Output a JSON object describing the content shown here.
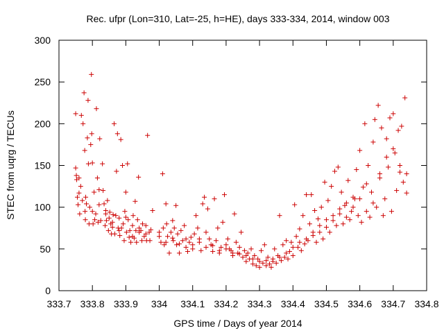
{
  "chart_data": {
    "type": "scatter",
    "title": "Rec. ufpr (Lon=310, Lat=-25, h=HE), days 333-334, 2014, window 003",
    "xlabel": "GPS time / Days of year 2014",
    "ylabel": "STEC from uqrg / TECUs",
    "xlim": [
      333.7,
      334.8
    ],
    "ylim": [
      0,
      300
    ],
    "x_ticks": [
      "333.7",
      "333.8",
      "333.9",
      "334",
      "334.1",
      "334.2",
      "334.3",
      "334.4",
      "334.5",
      "334.6",
      "334.7",
      "334.8"
    ],
    "y_ticks": [
      "0",
      "50",
      "100",
      "150",
      "200",
      "250",
      "300"
    ],
    "grid": false,
    "legend": "none",
    "marker": "+",
    "color": "#cc0000",
    "series": [
      {
        "points": [
          [
            333.75,
            147
          ],
          [
            333.752,
            138
          ],
          [
            333.753,
            133
          ],
          [
            333.755,
            112
          ],
          [
            333.757,
            103
          ],
          [
            333.75,
            212
          ],
          [
            333.76,
            117
          ],
          [
            333.762,
            92
          ],
          [
            333.765,
            125
          ],
          [
            333.767,
            210
          ],
          [
            333.77,
            108
          ],
          [
            333.772,
            200
          ],
          [
            333.775,
            237
          ],
          [
            333.777,
            168
          ],
          [
            333.778,
            95
          ],
          [
            333.779,
            85
          ],
          [
            333.782,
            104
          ],
          [
            333.785,
            183
          ],
          [
            333.787,
            228
          ],
          [
            333.788,
            152
          ],
          [
            333.79,
            80
          ],
          [
            333.792,
            100
          ],
          [
            333.795,
            175
          ],
          [
            333.797,
            259
          ],
          [
            333.798,
            188
          ],
          [
            333.8,
            153
          ],
          [
            333.802,
            80
          ],
          [
            333.805,
            118
          ],
          [
            333.807,
            85
          ],
          [
            333.81,
            92
          ],
          [
            333.812,
            218
          ],
          [
            333.815,
            135
          ],
          [
            333.817,
            82
          ],
          [
            333.82,
            121
          ],
          [
            333.822,
            182
          ],
          [
            333.825,
            84
          ],
          [
            333.83,
            152
          ],
          [
            333.832,
            120
          ],
          [
            333.835,
            104
          ],
          [
            333.838,
            78
          ],
          [
            333.84,
            96
          ],
          [
            333.842,
            84
          ],
          [
            333.845,
            108
          ],
          [
            333.848,
            72
          ],
          [
            333.85,
            87
          ],
          [
            333.852,
            94
          ],
          [
            333.855,
            80
          ],
          [
            333.857,
            68
          ],
          [
            333.86,
            76
          ],
          [
            333.862,
            91
          ],
          [
            333.865,
            200
          ],
          [
            333.867,
            68
          ],
          [
            333.87,
            90
          ],
          [
            333.872,
            143
          ],
          [
            333.875,
            188
          ],
          [
            333.877,
            75
          ],
          [
            333.88,
            87
          ],
          [
            333.882,
            66
          ],
          [
            333.885,
            181
          ],
          [
            333.887,
            75
          ],
          [
            333.89,
            150
          ],
          [
            333.892,
            80
          ],
          [
            333.895,
            60
          ],
          [
            333.897,
            95
          ],
          [
            333.9,
            118
          ],
          [
            333.902,
            70
          ],
          [
            333.905,
            152
          ],
          [
            333.907,
            85
          ],
          [
            333.91,
            64
          ],
          [
            333.912,
            72
          ],
          [
            333.915,
            58
          ],
          [
            333.92,
            78
          ],
          [
            333.922,
            90
          ],
          [
            333.925,
            63
          ],
          [
            333.928,
            107
          ],
          [
            333.93,
            72
          ],
          [
            333.932,
            58
          ],
          [
            333.935,
            85
          ],
          [
            333.938,
            136
          ],
          [
            333.94,
            70
          ],
          [
            333.945,
            72
          ],
          [
            333.948,
            60
          ],
          [
            333.95,
            80
          ],
          [
            333.955,
            65
          ],
          [
            333.96,
            78
          ],
          [
            333.962,
            60
          ],
          [
            333.965,
            186
          ],
          [
            333.97,
            70
          ],
          [
            333.972,
            60
          ],
          [
            333.975,
            73
          ],
          [
            333.98,
            96
          ],
          [
            334.0,
            65
          ],
          [
            334.005,
            58
          ],
          [
            334.01,
            140
          ],
          [
            334.012,
            75
          ],
          [
            334.015,
            55
          ],
          [
            334.02,
            104
          ],
          [
            334.022,
            80
          ],
          [
            334.025,
            65
          ],
          [
            334.03,
            45
          ],
          [
            334.035,
            70
          ],
          [
            334.04,
            84
          ],
          [
            334.042,
            60
          ],
          [
            334.045,
            75
          ],
          [
            334.05,
            102
          ],
          [
            334.052,
            55
          ],
          [
            334.055,
            68
          ],
          [
            334.06,
            45
          ],
          [
            334.065,
            72
          ],
          [
            334.07,
            60
          ],
          [
            334.075,
            78
          ],
          [
            334.08,
            52
          ],
          [
            334.085,
            47
          ],
          [
            334.09,
            58
          ],
          [
            334.095,
            64
          ],
          [
            334.1,
            50
          ],
          [
            334.105,
            68
          ],
          [
            334.11,
            90
          ],
          [
            334.115,
            75
          ],
          [
            334.12,
            62
          ],
          [
            334.125,
            48
          ],
          [
            334.13,
            104
          ],
          [
            334.135,
            112
          ],
          [
            334.14,
            70
          ],
          [
            334.145,
            98
          ],
          [
            334.15,
            62
          ],
          [
            334.155,
            55
          ],
          [
            334.16,
            47
          ],
          [
            334.165,
            110
          ],
          [
            334.17,
            60
          ],
          [
            334.175,
            75
          ],
          [
            334.18,
            45
          ],
          [
            334.185,
            52
          ],
          [
            334.19,
            82
          ],
          [
            334.195,
            115
          ],
          [
            334.2,
            55
          ],
          [
            334.205,
            62
          ],
          [
            334.21,
            50
          ],
          [
            334.215,
            48
          ],
          [
            334.22,
            42
          ],
          [
            334.225,
            92
          ],
          [
            334.23,
            58
          ],
          [
            334.235,
            45
          ],
          [
            334.24,
            52
          ],
          [
            334.245,
            70
          ],
          [
            334.25,
            40
          ],
          [
            334.255,
            48
          ],
          [
            334.26,
            35
          ],
          [
            334.265,
            45
          ],
          [
            334.27,
            38
          ],
          [
            334.275,
            50
          ],
          [
            334.28,
            32
          ],
          [
            334.285,
            42
          ],
          [
            334.29,
            30
          ],
          [
            334.295,
            38
          ],
          [
            334.3,
            28
          ],
          [
            334.305,
            48
          ],
          [
            334.31,
            33
          ],
          [
            334.315,
            55
          ],
          [
            334.32,
            30
          ],
          [
            334.325,
            40
          ],
          [
            334.33,
            32
          ],
          [
            334.335,
            28
          ],
          [
            334.34,
            38
          ],
          [
            334.345,
            50
          ],
          [
            334.35,
            33
          ],
          [
            334.355,
            42
          ],
          [
            334.36,
            90
          ],
          [
            334.365,
            36
          ],
          [
            334.37,
            55
          ],
          [
            334.375,
            40
          ],
          [
            334.38,
            60
          ],
          [
            334.385,
            38
          ],
          [
            334.39,
            47
          ],
          [
            334.395,
            58
          ],
          [
            334.4,
            42
          ],
          [
            334.405,
            103
          ],
          [
            334.41,
            65
          ],
          [
            334.415,
            52
          ],
          [
            334.42,
            74
          ],
          [
            334.425,
            48
          ],
          [
            334.43,
            90
          ],
          [
            334.435,
            56
          ],
          [
            334.44,
            115
          ],
          [
            334.445,
            60
          ],
          [
            334.45,
            80
          ],
          [
            334.455,
            115
          ],
          [
            334.46,
            66
          ],
          [
            334.465,
            96
          ],
          [
            334.47,
            58
          ],
          [
            334.475,
            86
          ],
          [
            334.48,
            70
          ],
          [
            334.485,
            100
          ],
          [
            334.49,
            62
          ],
          [
            334.495,
            130
          ],
          [
            334.5,
            76
          ],
          [
            334.505,
            108
          ],
          [
            334.51,
            70
          ],
          [
            334.515,
            125
          ],
          [
            334.52,
            84
          ],
          [
            334.525,
            143
          ],
          [
            334.53,
            78
          ],
          [
            334.535,
            148
          ],
          [
            334.54,
            92
          ],
          [
            334.545,
            118
          ],
          [
            334.55,
            80
          ],
          [
            334.555,
            102
          ],
          [
            334.56,
            88
          ],
          [
            334.565,
            132
          ],
          [
            334.57,
            85
          ],
          [
            334.575,
            95
          ],
          [
            334.58,
            112
          ],
          [
            334.585,
            110
          ],
          [
            334.59,
            145
          ],
          [
            334.595,
            90
          ],
          [
            334.6,
            168
          ],
          [
            334.605,
            82
          ],
          [
            334.61,
            124
          ],
          [
            334.615,
            200
          ],
          [
            334.62,
            95
          ],
          [
            334.625,
            150
          ],
          [
            334.63,
            88
          ],
          [
            334.635,
            118
          ],
          [
            334.64,
            178
          ],
          [
            334.645,
            205
          ],
          [
            334.65,
            100
          ],
          [
            334.655,
            222
          ],
          [
            334.66,
            135
          ],
          [
            334.665,
            195
          ],
          [
            334.67,
            90
          ],
          [
            334.675,
            110
          ],
          [
            334.68,
            182
          ],
          [
            334.685,
            148
          ],
          [
            334.69,
            207
          ],
          [
            334.695,
            95
          ],
          [
            334.7,
            212
          ],
          [
            334.705,
            165
          ],
          [
            334.71,
            120
          ],
          [
            334.715,
            192
          ],
          [
            334.72,
            142
          ],
          [
            334.725,
            197
          ],
          [
            334.73,
            130
          ],
          [
            334.735,
            231
          ],
          [
            334.74,
            117
          ],
          [
            333.76,
            135
          ],
          [
            333.78,
            112
          ],
          [
            333.8,
            95
          ],
          [
            333.82,
            103
          ],
          [
            333.84,
            92
          ],
          [
            333.86,
            82
          ],
          [
            333.88,
            72
          ],
          [
            333.9,
            88
          ],
          [
            333.92,
            65
          ],
          [
            333.94,
            75
          ],
          [
            333.96,
            68
          ],
          [
            334.0,
            70
          ],
          [
            334.02,
            58
          ],
          [
            334.04,
            63
          ],
          [
            334.06,
            56
          ],
          [
            334.08,
            62
          ],
          [
            334.1,
            55
          ],
          [
            334.12,
            58
          ],
          [
            334.14,
            52
          ],
          [
            334.16,
            54
          ],
          [
            334.18,
            48
          ],
          [
            334.2,
            50
          ],
          [
            334.22,
            45
          ],
          [
            334.24,
            44
          ],
          [
            334.26,
            42
          ],
          [
            334.28,
            38
          ],
          [
            334.3,
            35
          ],
          [
            334.32,
            36
          ],
          [
            334.34,
            35
          ],
          [
            334.36,
            40
          ],
          [
            334.38,
            45
          ],
          [
            334.4,
            52
          ],
          [
            334.42,
            58
          ],
          [
            334.44,
            62
          ],
          [
            334.46,
            70
          ],
          [
            334.48,
            78
          ],
          [
            334.5,
            85
          ],
          [
            334.52,
            90
          ],
          [
            334.54,
            98
          ],
          [
            334.56,
            105
          ],
          [
            334.58,
            100
          ],
          [
            334.6,
            110
          ],
          [
            334.62,
            128
          ],
          [
            334.64,
            105
          ],
          [
            334.66,
            140
          ],
          [
            334.68,
            160
          ],
          [
            334.7,
            170
          ],
          [
            334.72,
            150
          ],
          [
            334.74,
            140
          ]
        ]
      }
    ]
  }
}
